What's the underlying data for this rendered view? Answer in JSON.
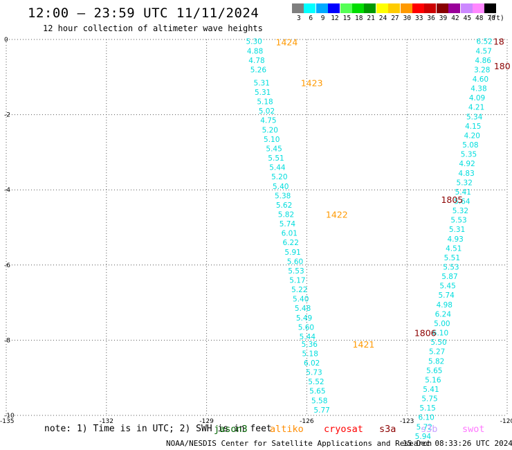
{
  "header": {
    "title": "12:00 – 23:59 UTC 11/11/2024",
    "subtitle": "12 hour collection of altimeter wave heights"
  },
  "legend": {
    "unit": "(ft)",
    "bins": [
      {
        "label": "3",
        "color": "#7f7f7f"
      },
      {
        "label": "6",
        "color": "#00ffff"
      },
      {
        "label": "9",
        "color": "#00aaff"
      },
      {
        "label": "12",
        "color": "#0000ff"
      },
      {
        "label": "15",
        "color": "#55ff55"
      },
      {
        "label": "18",
        "color": "#00dd00"
      },
      {
        "label": "21",
        "color": "#009900"
      },
      {
        "label": "24",
        "color": "#ffff00"
      },
      {
        "label": "27",
        "color": "#ffcc00"
      },
      {
        "label": "30",
        "color": "#ff9900"
      },
      {
        "label": "33",
        "color": "#ff0000"
      },
      {
        "label": "36",
        "color": "#cc0000"
      },
      {
        "label": "39",
        "color": "#880000"
      },
      {
        "label": "42",
        "color": "#990099"
      },
      {
        "label": "45",
        "color": "#cc88ff"
      },
      {
        "label": "48",
        "color": "#ff88ff"
      },
      {
        "label": "70",
        "color": "#000000"
      }
    ]
  },
  "axes": {
    "lon_ticks": [
      "-135",
      "-132",
      "-129",
      "-126",
      "-123",
      "-120"
    ],
    "lat_ticks": [
      "0",
      "-2",
      "-4",
      "-6",
      "-8",
      "-10"
    ]
  },
  "colors": {
    "swh": "#00dddd",
    "time_left": "#ff9900",
    "time_right": "#8b0000"
  },
  "tracks": [
    {
      "labels": [
        {
          "text": "1424",
          "lon": -126.6,
          "lat": -0.06
        },
        {
          "text": "1423",
          "lon": -125.85,
          "lat": -1.15
        },
        {
          "text": "1422",
          "lon": -125.1,
          "lat": -4.65
        },
        {
          "text": "1421",
          "lon": -124.3,
          "lat": -8.1
        }
      ],
      "points": [
        {
          "v": "5.30",
          "lon": -127.58,
          "lat": -0.05
        },
        {
          "v": "4.88",
          "lon": -127.55,
          "lat": -0.3
        },
        {
          "v": "4.78",
          "lon": -127.5,
          "lat": -0.55
        },
        {
          "v": "5.26",
          "lon": -127.45,
          "lat": -0.8
        },
        {
          "v": "5.31",
          "lon": -127.35,
          "lat": -1.15
        },
        {
          "v": "5.31",
          "lon": -127.32,
          "lat": -1.4
        },
        {
          "v": "5.18",
          "lon": -127.25,
          "lat": -1.65
        },
        {
          "v": "5.02",
          "lon": -127.2,
          "lat": -1.9
        },
        {
          "v": "4.75",
          "lon": -127.15,
          "lat": -2.15
        },
        {
          "v": "5.20",
          "lon": -127.1,
          "lat": -2.4
        },
        {
          "v": "5.10",
          "lon": -127.05,
          "lat": -2.65
        },
        {
          "v": "5.45",
          "lon": -126.98,
          "lat": -2.9
        },
        {
          "v": "5.51",
          "lon": -126.92,
          "lat": -3.15
        },
        {
          "v": "5.44",
          "lon": -126.88,
          "lat": -3.4
        },
        {
          "v": "5.20",
          "lon": -126.82,
          "lat": -3.65
        },
        {
          "v": "5.40",
          "lon": -126.78,
          "lat": -3.9
        },
        {
          "v": "5.38",
          "lon": -126.72,
          "lat": -4.15
        },
        {
          "v": "5.62",
          "lon": -126.68,
          "lat": -4.4
        },
        {
          "v": "5.82",
          "lon": -126.62,
          "lat": -4.65
        },
        {
          "v": "5.74",
          "lon": -126.58,
          "lat": -4.9
        },
        {
          "v": "6.01",
          "lon": -126.52,
          "lat": -5.15
        },
        {
          "v": "6.22",
          "lon": -126.48,
          "lat": -5.4
        },
        {
          "v": "5.91",
          "lon": -126.42,
          "lat": -5.65
        },
        {
          "v": "5.60",
          "lon": -126.35,
          "lat": -5.9
        },
        {
          "v": "5.53",
          "lon": -126.32,
          "lat": -6.15
        },
        {
          "v": "5.17",
          "lon": -126.28,
          "lat": -6.4
        },
        {
          "v": "5.22",
          "lon": -126.22,
          "lat": -6.65
        },
        {
          "v": "5.40",
          "lon": -126.18,
          "lat": -6.9
        },
        {
          "v": "5.48",
          "lon": -126.12,
          "lat": -7.15
        },
        {
          "v": "5.49",
          "lon": -126.08,
          "lat": -7.4
        },
        {
          "v": "5.60",
          "lon": -126.02,
          "lat": -7.65
        },
        {
          "v": "5.44",
          "lon": -125.98,
          "lat": -7.9
        },
        {
          "v": "5.36",
          "lon": -125.92,
          "lat": -8.1
        },
        {
          "v": "5.18",
          "lon": -125.9,
          "lat": -8.35
        },
        {
          "v": "6.02",
          "lon": -125.85,
          "lat": -8.6
        },
        {
          "v": "5.73",
          "lon": -125.78,
          "lat": -8.85
        },
        {
          "v": "5.52",
          "lon": -125.72,
          "lat": -9.1
        },
        {
          "v": "5.65",
          "lon": -125.68,
          "lat": -9.35
        },
        {
          "v": "5.58",
          "lon": -125.62,
          "lat": -9.6
        },
        {
          "v": "5.77",
          "lon": -125.55,
          "lat": -9.85
        }
      ]
    },
    {
      "labels": [
        {
          "text": "18",
          "lon": -120.25,
          "lat": -0.05
        },
        {
          "text": "180",
          "lon": -120.15,
          "lat": -0.7
        },
        {
          "text": "1805",
          "lon": -121.65,
          "lat": -4.25
        },
        {
          "text": "1806",
          "lon": -122.45,
          "lat": -7.8
        }
      ],
      "points": [
        {
          "v": "6.52",
          "lon": -120.68,
          "lat": -0.05
        },
        {
          "v": "4.57",
          "lon": -120.7,
          "lat": -0.3
        },
        {
          "v": "4.86",
          "lon": -120.72,
          "lat": -0.55
        },
        {
          "v": "3.28",
          "lon": -120.75,
          "lat": -0.8
        },
        {
          "v": "4.60",
          "lon": -120.8,
          "lat": -1.05
        },
        {
          "v": "4.38",
          "lon": -120.85,
          "lat": -1.3
        },
        {
          "v": "4.09",
          "lon": -120.9,
          "lat": -1.55
        },
        {
          "v": "4.21",
          "lon": -120.92,
          "lat": -1.8
        },
        {
          "v": "5.34",
          "lon": -120.98,
          "lat": -2.05
        },
        {
          "v": "4.15",
          "lon": -121.02,
          "lat": -2.3
        },
        {
          "v": "4.20",
          "lon": -121.05,
          "lat": -2.55
        },
        {
          "v": "5.08",
          "lon": -121.1,
          "lat": -2.8
        },
        {
          "v": "5.35",
          "lon": -121.15,
          "lat": -3.05
        },
        {
          "v": "4.92",
          "lon": -121.2,
          "lat": -3.3
        },
        {
          "v": "4.83",
          "lon": -121.22,
          "lat": -3.55
        },
        {
          "v": "5.32",
          "lon": -121.28,
          "lat": -3.8
        },
        {
          "v": "5.41",
          "lon": -121.32,
          "lat": -4.05
        },
        {
          "v": "5.64",
          "lon": -121.35,
          "lat": -4.3
        },
        {
          "v": "5.32",
          "lon": -121.4,
          "lat": -4.55
        },
        {
          "v": "5.53",
          "lon": -121.45,
          "lat": -4.8
        },
        {
          "v": "5.31",
          "lon": -121.5,
          "lat": -5.05
        },
        {
          "v": "4.93",
          "lon": -121.55,
          "lat": -5.3
        },
        {
          "v": "4.51",
          "lon": -121.6,
          "lat": -5.55
        },
        {
          "v": "5.51",
          "lon": -121.65,
          "lat": -5.8
        },
        {
          "v": "5.53",
          "lon": -121.68,
          "lat": -6.05
        },
        {
          "v": "5.87",
          "lon": -121.72,
          "lat": -6.3
        },
        {
          "v": "5.45",
          "lon": -121.78,
          "lat": -6.55
        },
        {
          "v": "5.74",
          "lon": -121.82,
          "lat": -6.8
        },
        {
          "v": "4.98",
          "lon": -121.88,
          "lat": -7.05
        },
        {
          "v": "6.24",
          "lon": -121.92,
          "lat": -7.3
        },
        {
          "v": "5.00",
          "lon": -121.95,
          "lat": -7.55
        },
        {
          "v": "6.10",
          "lon": -122.0,
          "lat": -7.8
        },
        {
          "v": "5.50",
          "lon": -122.05,
          "lat": -8.05
        },
        {
          "v": "5.27",
          "lon": -122.1,
          "lat": -8.3
        },
        {
          "v": "5.82",
          "lon": -122.12,
          "lat": -8.55
        },
        {
          "v": "5.65",
          "lon": -122.18,
          "lat": -8.8
        },
        {
          "v": "5.16",
          "lon": -122.22,
          "lat": -9.05
        },
        {
          "v": "5.41",
          "lon": -122.28,
          "lat": -9.3
        },
        {
          "v": "5.75",
          "lon": -122.32,
          "lat": -9.55
        },
        {
          "v": "5.15",
          "lon": -122.38,
          "lat": -9.8
        },
        {
          "v": "6.10",
          "lon": -122.42,
          "lat": -10.05
        },
        {
          "v": "5.72",
          "lon": -122.48,
          "lat": -10.3
        },
        {
          "v": "5.94",
          "lon": -122.52,
          "lat": -10.55
        }
      ]
    }
  ],
  "footer": {
    "note": "note: 1) Time is in UTC; 2) SWH is in feet",
    "missions": [
      {
        "label": "jason3",
        "color": "#006400"
      },
      {
        "label": "altiko",
        "color": "#ff8c00"
      },
      {
        "label": "cryosat",
        "color": "#ff0000"
      },
      {
        "label": "s3a",
        "color": "#8b0000"
      },
      {
        "label": "s3b",
        "color": "#c8a2ff"
      },
      {
        "label": "swot",
        "color": "#ff77ff"
      }
    ],
    "credit": "NOAA/NESDIS Center for Satellite Applications and Research",
    "timestamp": "15 Dec 08:33:26 UTC 2024"
  }
}
